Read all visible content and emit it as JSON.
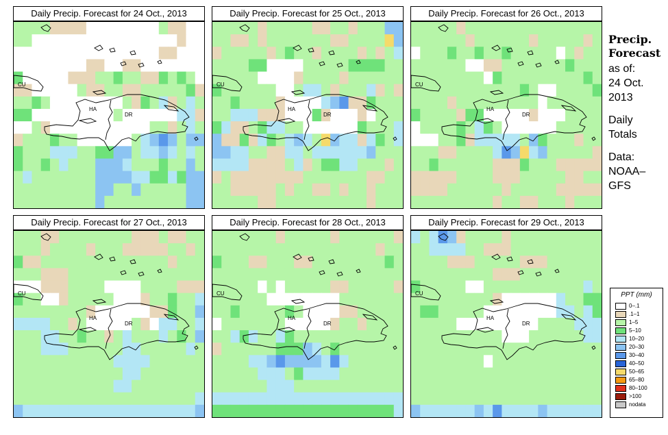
{
  "panels": [
    {
      "title": "Daily Precip. Forecast for  24 Oct., 2013"
    },
    {
      "title": "Daily Precip. Forecast for  25 Oct., 2013"
    },
    {
      "title": "Daily Precip. Forecast for  26 Oct., 2013"
    },
    {
      "title": "Daily Precip. Forecast for  27 Oct., 2013"
    },
    {
      "title": "Daily Precip. Forecast for  28 Oct., 2013"
    },
    {
      "title": "Daily Precip. Forecast for  29 Oct., 2013"
    }
  ],
  "map_labels": {
    "cu": "CU",
    "ha": "HA",
    "dr": "DR"
  },
  "sidebar": {
    "title_line1": "Precip.",
    "title_line2": "Forecast",
    "asof": "as of:",
    "date_line1": "24 Oct.",
    "date_line2": "2013",
    "totals_line1": "Daily",
    "totals_line2": "Totals",
    "data_line1": "Data:",
    "data_line2": "NOAA–",
    "data_line3": "GFS"
  },
  "legend": {
    "title": "PPT (mm)",
    "items": [
      {
        "label": "0–.1",
        "color": "#ffffff"
      },
      {
        "label": ".1–1",
        "color": "#e8d7b9"
      },
      {
        "label": "1–5",
        "color": "#b6f5a8"
      },
      {
        "label": "5–10",
        "color": "#6fe27a"
      },
      {
        "label": "10–20",
        "color": "#b3e6f5"
      },
      {
        "label": "20–30",
        "color": "#8cc4f2"
      },
      {
        "label": "30–40",
        "color": "#5a98ea"
      },
      {
        "label": "40–50",
        "color": "#2864d8"
      },
      {
        "label": "50–65",
        "color": "#f5da6a"
      },
      {
        "label": "65–80",
        "color": "#f59a12"
      },
      {
        "label": "80–100",
        "color": "#e0301c"
      },
      {
        "label": ">100",
        "color": "#9a1c0c"
      },
      {
        "label": "nodata",
        "color": "#c8c8c8"
      }
    ]
  },
  "map_grids": [
    [
      "CCCCBBBBAAAAAAAACBBAA",
      "CCAAAAAAAAAAAAAAAABAA",
      "AAAAAAAAAAAAAAAABBAAA",
      "AAAAAAAABBAABBAAAAAAA",
      "DAAAAABBBCCDCCBBDCDCA",
      "BBAAAAACBBCCBBCCCCCDB",
      "CCDCAAAAAAAACBDCEBCEC",
      "DDAAAAAAAAACAAAAAAEEB",
      "AACBAAAAAAAAAAACCBCEC",
      "BCCCDCCAAAAAACEFGFCFF",
      "DCCCEEECCDDFFCEEFECEC",
      "DCCDCECCCFFFECCCDCCFC",
      "CECCCCCCCFFFFEEDDEDFF",
      "CCCCCCCCCFFCCFCCCCCFF",
      "CCCCCCCCCFCCCCCCCCCFF"
    ],
    [
      "CCCCCBCCCCCBBCCBCCCFF",
      "CCBBCBCCCCCCCBBCCCCIF",
      "BCCCCCBCDCCBCCCCBCBCE",
      "CCCCDDAAAACCCCCDDDDCC",
      "CCCCCAAAABCCCCBCCCCCC",
      "DCCCCCCAACEECBCCCEBCB",
      "CCDCCCCBAAAAEFGBBDCCC",
      "CCEEEBBBAAADBAAABACCC",
      "DEBBCDEECCAAAAAADCCCE",
      "FBBDBEDCEFECIFEEBEDCE",
      "FFEECCBBEECEEEEEEFCCC",
      "EEEEBBBBCEBCDDEECCCBC",
      "BCBBBBBBBBCCCCCCCBBCC",
      "CCBBBBBCBCCBBCBCCBCCC",
      "CCCCCBBCCCCCCCCCCBCCC"
    ],
    [
      "CCCCCBCCCCCCCCCCCCCCC",
      "CCCCCCBCCCCCCBCCCCCBC",
      "ACCCDCCDCCDCCCCCACBCC",
      "CCCCCCAABBCCCCCCCDCCC",
      "CCCCCCCCADCCCCCCCCCDC",
      "CCCCCCCCCCCCDCAACCCCD",
      "CCCCBCCCCCCCCCACCCCCC",
      "DCCCCBDDAAAAABAAACCCC",
      "ACCCCDCEDCAAAAAACCCCC",
      "AAACCDBEEEEECFDCCCBCC",
      "CCCBBCCCCEGFIEFCCCCCB",
      "CCDCCCCCCBBBDCCCBBBBB",
      "BBBBBCCCCBBBCCCCCBBCC",
      "BBBBCCCCCCBCCCCCBBBBB",
      "CCCCCCCCCBCCBBCCCBCCC"
    ],
    [
      "CCCBBCCCCCCCCBBBCBBCC",
      "CCCBCCCCBCCCBBBBBCCBC",
      "DBBCCCCCCCCCCCCCCBCCC",
      "CCCBBBCCCCCCCCCCCCCCC",
      "AAABBBCCCCAAAACCCCBBB",
      "DCCAABCCCCCAAABCCDCCE",
      "CCCCCCCCBAAAAAABBDCCF",
      "EEEECCBCAAAAACBAEECCE",
      "CCCEECCDCCBCECCCECDCF",
      "CCCEEECCCCCCEECCCCCEC",
      "CCCCCCCCCCCEEEECCCCCC",
      "CCCCCCCCCCCCEECCCCCCC",
      "CCCCCCCCCCCEECCCCCCCC",
      "CCCCCCCCCCCCCCCCCCCCE",
      "FEEEEEEEEEEEEEEEEEEEF"
    ],
    [
      "CCCCCCCBCCCCCBCCCCCCB",
      "CCCCCCCCCCCCCCCCCCBCC",
      "DCCCBBCCCBBCCCCCCCCDC",
      "CCCCCCCCCCCCCCCCCCCCC",
      "CCCCCACACCCCCBBCCCCCB",
      "CCCCCCAAAAAAAACCCCCCC",
      "CCDCCCCCDCAAAABBCCCCC",
      "ACCCCCCCAAAAABCCBCCCC",
      "CCEDECCEDCCCCCCCCCCCC",
      "BCCCCCCDDDFECDCCCCCCC",
      "CCCCEEFGFFFFEGECCCCCC",
      "CCCCCEEECDEEEECCCCCCC",
      "CCCCCCEEECCCCCCCCCCCC",
      "EEEEEEEEEEEEEEEEEEEEE",
      "DDDDDDDDDDDDDDDDDDDDE"
    ],
    [
      "ECEGFBCCCCBCCCCCCCCCC",
      "CCEEEECCBBBCCCCCCCCCC",
      "CCCCBBBCCCCCBBBCCCCCC",
      "CCCCCCCCCBBBCCCCCCCCC",
      "DCCCCCAACCCCCCCCCCCEC",
      "CCCCCCCCCBAAAAAAECCDD",
      "CDDCCCCCAAAAAAAAEECED",
      "CCCCCAAAAAAAAACCCCEEE",
      "CCCCCCCCCCAAACCCCCCEE",
      "CCCCCCCCCCCCCCCCCCCCC",
      "CCCCCCCCACCCCCCCCCCCC",
      "CCCCCCCCCCCCCCCCCCCCC",
      "CCCCCCCCCCCCCCCCCCCCC",
      "CCCCCCCCCCCCCCCCCCCCC",
      "FEEEEEEFEGEEEEFEEEEEE"
    ]
  ]
}
